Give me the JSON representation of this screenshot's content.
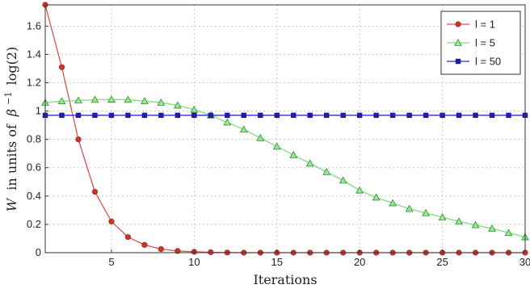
{
  "chart_data": {
    "type": "line",
    "xlabel": "Iterations",
    "ylabel_parts": {
      "w": "W",
      "text": "in units of",
      "beta": "β",
      "exp": "−1",
      "log": "log(2)"
    },
    "xlim": [
      1,
      30
    ],
    "ylim": [
      0,
      1.75
    ],
    "xticks": [
      5,
      10,
      15,
      20,
      25,
      30
    ],
    "yticks": [
      0,
      0.2,
      0.4,
      0.6,
      0.8,
      1,
      1.2,
      1.4,
      1.6
    ],
    "ytick_labels": [
      "0",
      "0.2",
      "0.4",
      "0.6",
      "0.8",
      "1",
      "1.2",
      "1.4",
      "1.6"
    ],
    "grid": true,
    "legend_position": "top-right",
    "x": [
      1,
      2,
      3,
      4,
      5,
      6,
      7,
      8,
      9,
      10,
      11,
      12,
      13,
      14,
      15,
      16,
      17,
      18,
      19,
      20,
      21,
      22,
      23,
      24,
      25,
      26,
      27,
      28,
      29,
      30
    ],
    "series": [
      {
        "name": "l = 1",
        "color": "#d9534f",
        "marker_color": "#b22222",
        "marker": "circle",
        "values": [
          1.75,
          1.31,
          0.8,
          0.43,
          0.22,
          0.11,
          0.055,
          0.025,
          0.012,
          0.006,
          0.003,
          0.001,
          0,
          0,
          0,
          0,
          0,
          0,
          0,
          0,
          0,
          0,
          0,
          0,
          0,
          0,
          0,
          0,
          0,
          0
        ]
      },
      {
        "name": "l = 5",
        "color": "#7ee07e",
        "marker_color": "#2e8b2e",
        "marker": "triangle",
        "values": [
          1.06,
          1.07,
          1.075,
          1.08,
          1.082,
          1.08,
          1.07,
          1.06,
          1.04,
          1.01,
          0.97,
          0.92,
          0.87,
          0.81,
          0.75,
          0.69,
          0.63,
          0.57,
          0.51,
          0.44,
          0.39,
          0.35,
          0.31,
          0.28,
          0.25,
          0.22,
          0.195,
          0.17,
          0.14,
          0.11
        ]
      },
      {
        "name": "l = 50",
        "color": "#2b2bd6",
        "marker_color": "#1a1a8c",
        "marker": "square",
        "values": [
          0.97,
          0.97,
          0.97,
          0.97,
          0.97,
          0.97,
          0.97,
          0.97,
          0.97,
          0.97,
          0.97,
          0.97,
          0.97,
          0.97,
          0.97,
          0.97,
          0.97,
          0.97,
          0.97,
          0.97,
          0.97,
          0.97,
          0.97,
          0.97,
          0.97,
          0.97,
          0.97,
          0.97,
          0.97,
          0.97
        ]
      }
    ]
  }
}
